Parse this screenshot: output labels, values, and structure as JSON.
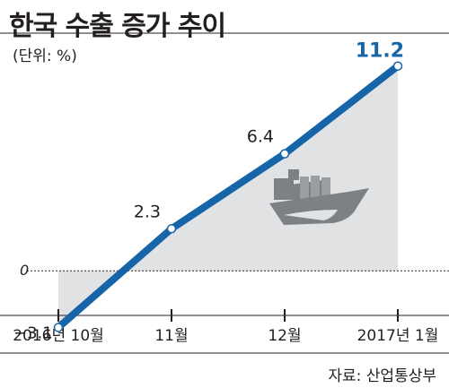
{
  "header": {
    "title": "한국 수출 증가 추이",
    "unit": "(단위: %)"
  },
  "footer": {
    "source": "자료: 산업통상부"
  },
  "colors": {
    "line": "#1565a8",
    "area": "#e1e2e3",
    "axis": "#231f20",
    "highlight_label": "#1565a8"
  },
  "icons": [
    "cargo-ship-icon"
  ],
  "chart_data": {
    "type": "area",
    "title": "한국 수출 증가 추이",
    "unit": "(단위: %)",
    "categories": [
      "2016년 10월",
      "11월",
      "12월",
      "2017년 1월"
    ],
    "series": [
      {
        "values": [
          -3.1,
          2.3,
          6.4,
          11.2
        ]
      }
    ],
    "data_labels": [
      "−3.1",
      "2.3",
      "6.4",
      "11.2"
    ],
    "baseline_label": "0",
    "ylim": [
      -4.5,
      13
    ],
    "grid": false,
    "legend": "none",
    "source": "자료: 산업통상부"
  }
}
